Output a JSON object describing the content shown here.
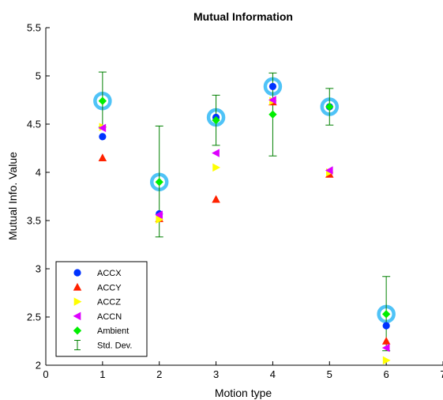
{
  "chart_data": {
    "type": "scatter",
    "title": "Mutual Information",
    "xlabel": "Motion type",
    "ylabel": "Mutual Info. Value",
    "xlim": [
      0,
      7
    ],
    "ylim": [
      2,
      5.5
    ],
    "xticks": [
      0,
      1,
      2,
      3,
      4,
      5,
      6,
      7
    ],
    "yticks": [
      2,
      2.5,
      3,
      3.5,
      4,
      4.5,
      5,
      5.5
    ],
    "ytick_labels": [
      "2",
      "2.5",
      "3",
      "3.5",
      "4",
      "4.5",
      "5",
      "5.5"
    ],
    "grid": false,
    "legend_position": "bottom-left",
    "x": [
      1,
      2,
      3,
      4,
      5,
      6
    ],
    "series": [
      {
        "name": "ACCX",
        "marker": "circle",
        "color": "#0033ff",
        "values": [
          4.37,
          3.57,
          4.57,
          4.89,
          4.68,
          2.41
        ]
      },
      {
        "name": "ACCY",
        "marker": "triangle-up",
        "color": "#ff2200",
        "values": [
          4.15,
          3.52,
          3.72,
          4.73,
          3.98,
          2.25
        ]
      },
      {
        "name": "ACCZ",
        "marker": "triangle-right",
        "color": "#ffff00",
        "values": [
          4.47,
          3.51,
          4.05,
          4.74,
          4.0,
          2.05
        ]
      },
      {
        "name": "ACCN",
        "marker": "triangle-left",
        "color": "#dd00ff",
        "values": [
          4.46,
          3.56,
          4.2,
          4.75,
          4.02,
          2.18
        ]
      },
      {
        "name": "Ambient",
        "marker": "diamond",
        "color": "#00ee00",
        "values": [
          4.74,
          3.9,
          4.54,
          4.6,
          4.68,
          2.53
        ]
      }
    ],
    "highlight": {
      "color": "#4fc3f7",
      "values": [
        4.74,
        3.9,
        4.57,
        4.89,
        4.68,
        2.53
      ]
    },
    "std_dev": {
      "name": "Std. Dev.",
      "color": "#008000",
      "center": [
        4.74,
        3.9,
        4.54,
        4.6,
        4.68,
        2.53
      ],
      "lower": [
        4.47,
        3.33,
        4.28,
        4.17,
        4.49,
        2.15
      ],
      "upper": [
        5.04,
        4.48,
        4.8,
        5.03,
        4.87,
        2.92
      ]
    }
  }
}
